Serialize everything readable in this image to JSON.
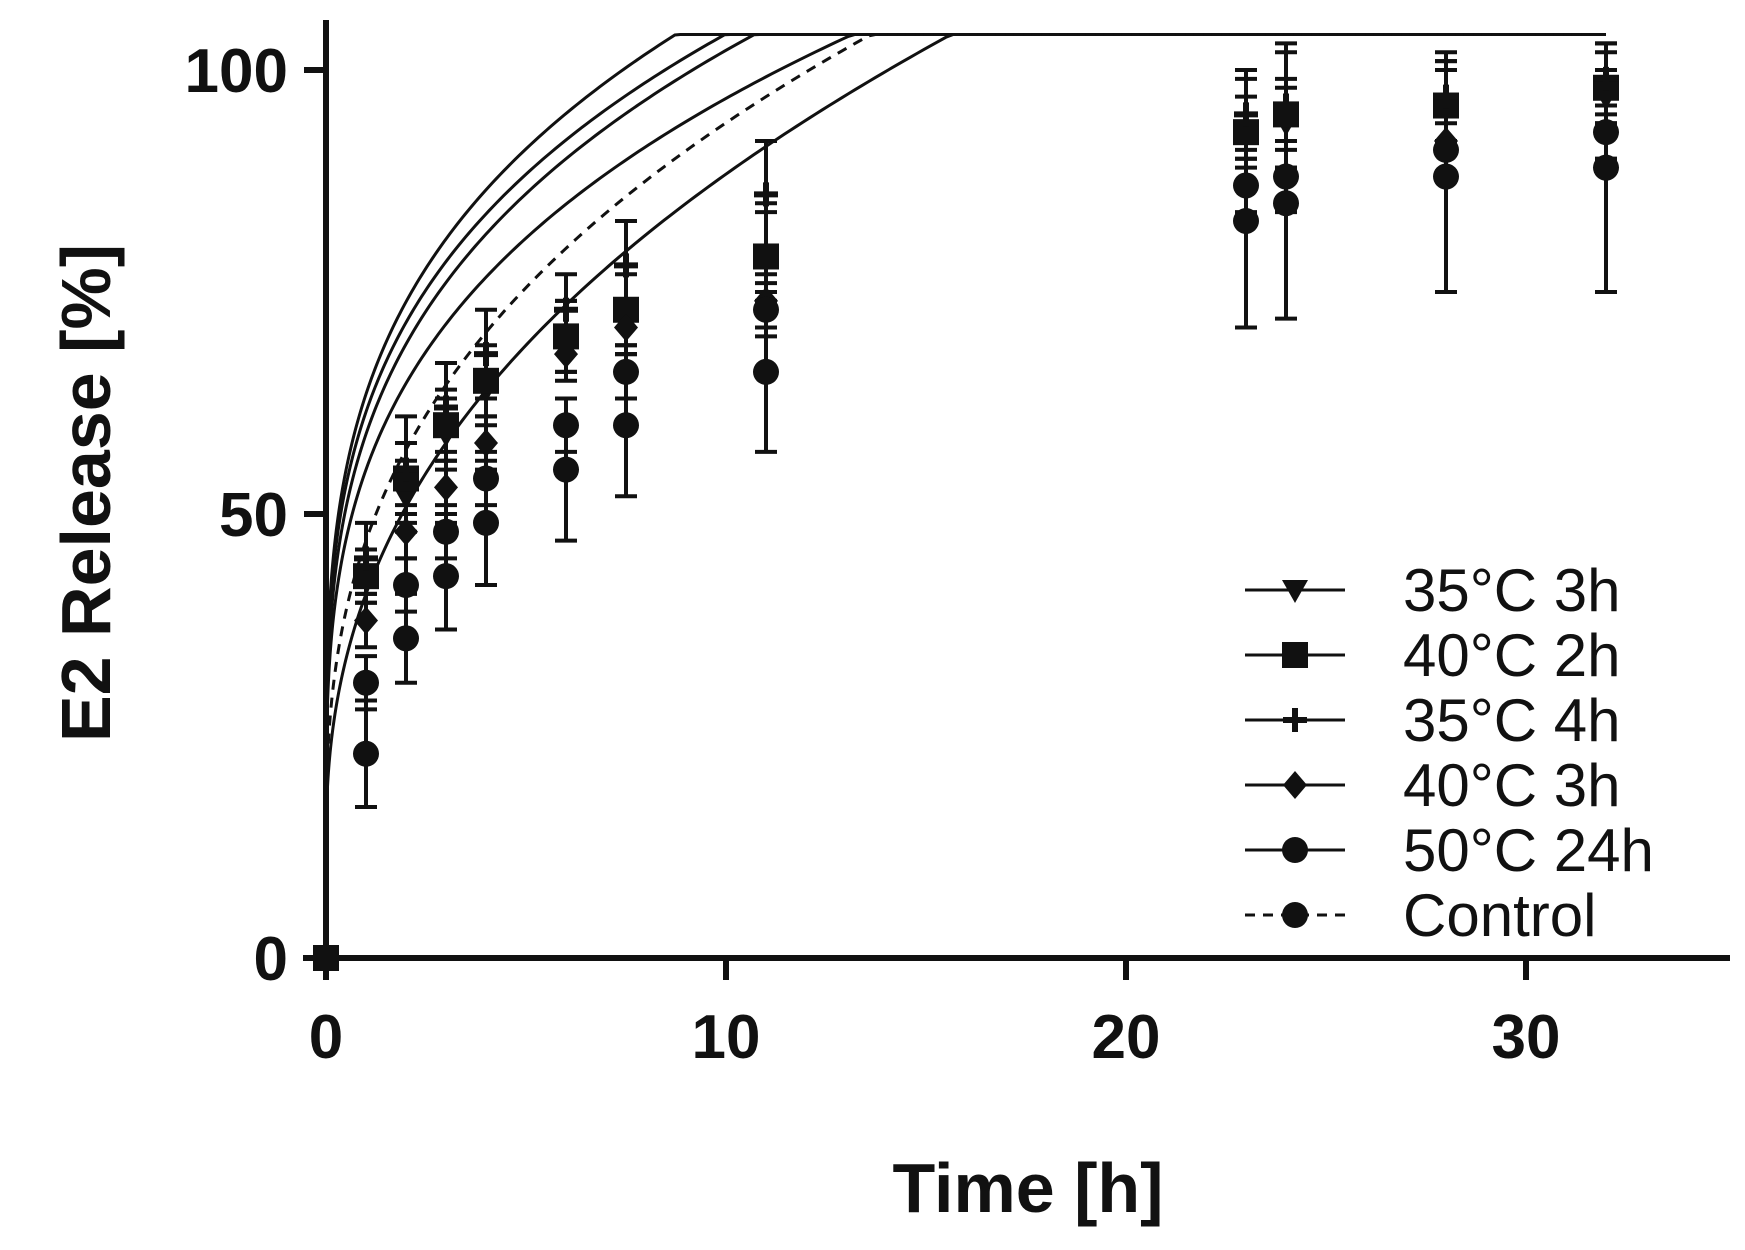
{
  "chart_data": {
    "type": "scatter",
    "title": "",
    "xlabel": "Time [h]",
    "ylabel": "E2 Release [%]",
    "xlim": [
      0,
      35
    ],
    "ylim": [
      0,
      105
    ],
    "xticks": [
      0,
      10,
      20,
      30
    ],
    "yticks": [
      0,
      50,
      100
    ],
    "grid": false,
    "legend_position": "bottom-right",
    "x": [
      0,
      1,
      2,
      3,
      4,
      6,
      7.5,
      11,
      23,
      24,
      28,
      32
    ],
    "series": [
      {
        "name": "35°C 3h",
        "marker": "triangle-down",
        "line": "solid",
        "values": [
          0,
          43,
          52,
          59,
          64,
          70,
          73,
          79,
          93,
          94,
          96,
          97
        ],
        "errors": [
          0,
          3,
          4,
          4,
          4,
          4,
          4,
          5,
          4,
          5,
          4,
          3
        ],
        "fit": {
          "a": 14.5,
          "k": 47,
          "n": 0.28
        }
      },
      {
        "name": "40°C 2h",
        "marker": "square",
        "line": "solid",
        "values": [
          0,
          43,
          54,
          60,
          65,
          70,
          73,
          79,
          93,
          95,
          96,
          98
        ],
        "errors": [
          0,
          3,
          4,
          4,
          4,
          4,
          5,
          6,
          6,
          7,
          5,
          4
        ],
        "fit": {
          "a": 13.5,
          "k": 45.5,
          "n": 0.29
        }
      },
      {
        "name": "35°C 4h",
        "marker": "plus",
        "line": "solid",
        "values": [
          0,
          45,
          55,
          62,
          68,
          73,
          78,
          86,
          95,
          96,
          97,
          99
        ],
        "errors": [
          0,
          4,
          6,
          5,
          5,
          4,
          5,
          6,
          5,
          7,
          5,
          4
        ],
        "fit": {
          "a": 15,
          "k": 48.5,
          "n": 0.28
        }
      },
      {
        "name": "40°C 3h",
        "marker": "diamond",
        "line": "solid",
        "values": [
          0,
          38,
          48,
          53,
          58,
          68,
          71,
          74,
          87,
          88,
          92,
          93
        ],
        "errors": [
          0,
          3,
          3,
          3,
          3,
          3,
          3,
          3,
          4,
          4,
          4,
          3
        ],
        "fit": {
          "a": 13,
          "k": 42,
          "n": 0.3
        }
      },
      {
        "name": "50°C 24h",
        "marker": "circle",
        "line": "solid",
        "values": [
          0,
          23,
          36,
          43,
          49,
          55,
          60,
          66,
          83,
          85,
          88,
          89
        ],
        "errors": [
          0,
          6,
          5,
          6,
          7,
          8,
          8,
          9,
          12,
          13,
          13,
          14
        ],
        "fit": {
          "a": 12,
          "k": 29,
          "n": 0.42
        }
      },
      {
        "name": "Control",
        "marker": "circle",
        "line": "dashed",
        "values": [
          0,
          31,
          42,
          48,
          54,
          60,
          66,
          73,
          87,
          88,
          91,
          93
        ],
        "errors": [
          0,
          3,
          3,
          3,
          3,
          3,
          3,
          3,
          3,
          3,
          3,
          3
        ],
        "fit": {
          "a": 12,
          "k": 35,
          "n": 0.37
        }
      }
    ]
  }
}
